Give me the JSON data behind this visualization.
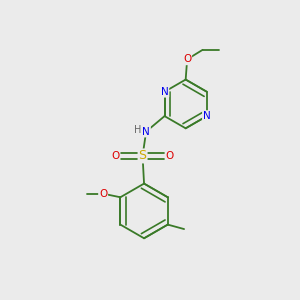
{
  "background_color": "#ebebeb",
  "bond_color": "#3a7a28",
  "atom_colors": {
    "N": "#0000ee",
    "O": "#dd0000",
    "S": "#ccaa00",
    "C": "#3a7a28",
    "H": "#666666"
  },
  "figsize": [
    3.0,
    3.0
  ],
  "dpi": 100
}
